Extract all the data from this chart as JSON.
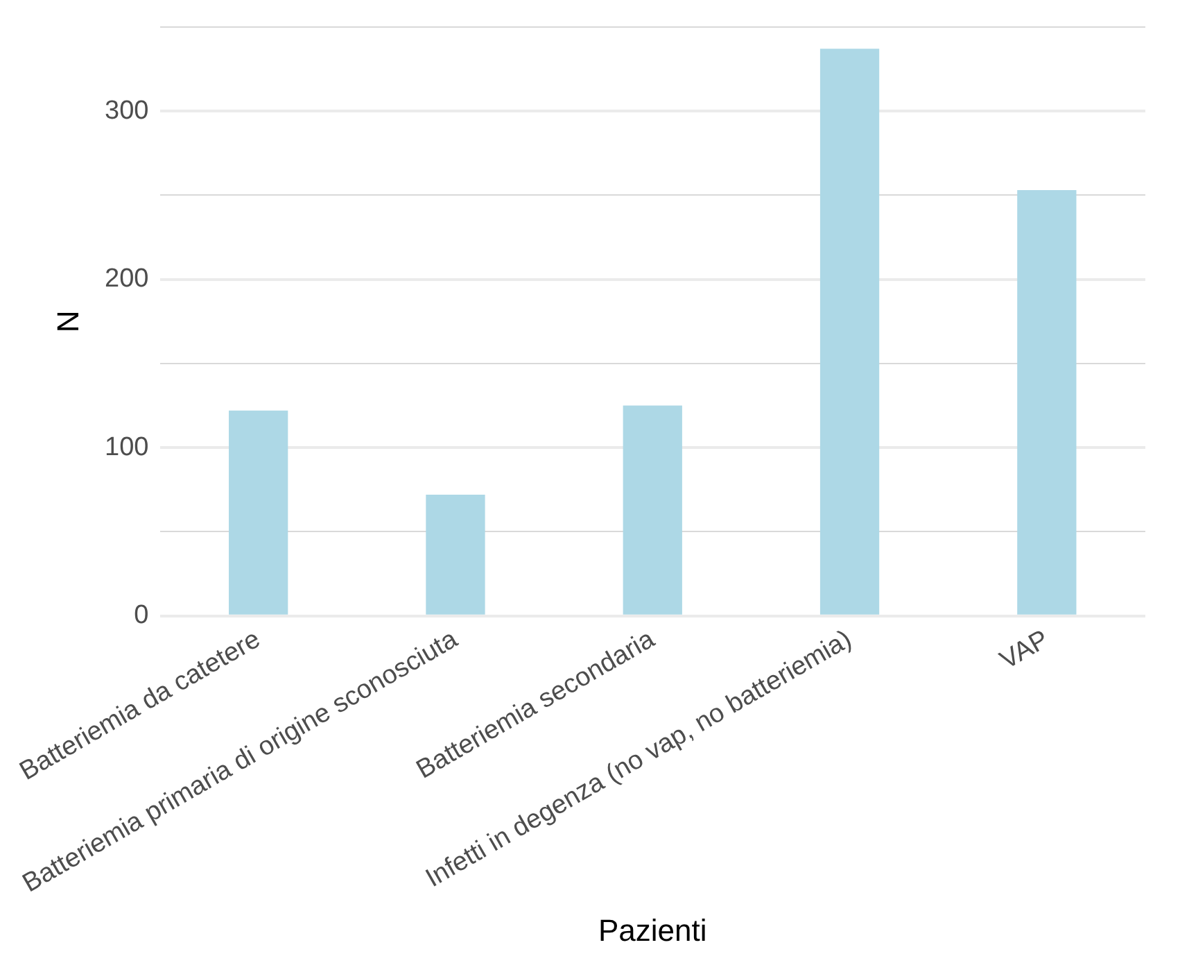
{
  "chart_data": {
    "type": "bar",
    "xlabel": "Pazienti",
    "ylabel": "N",
    "categories": [
      "Batteriemia da catetere",
      "Batteriemia primaria di origine sconosciuta",
      "Batteriemia secondaria",
      "Infetti in degenza (no vap, no batteriemia)",
      "VAP"
    ],
    "values": [
      122,
      72,
      125,
      337,
      253
    ],
    "color": "#add8e6",
    "ylim": [
      0,
      350
    ],
    "yticks": [
      0,
      {
        "value": 50,
        "label": null
      },
      100,
      {
        "value": 150,
        "label": null
      },
      200,
      {
        "value": 250,
        "label": null
      },
      300,
      {
        "value": 350,
        "label": null
      }
    ],
    "grid": "y"
  }
}
